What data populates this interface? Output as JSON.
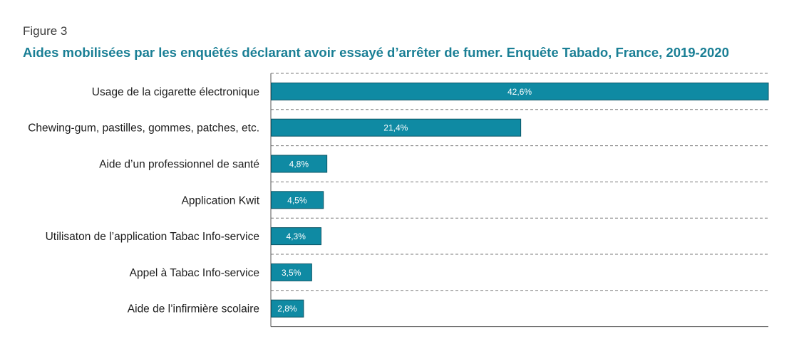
{
  "figure": {
    "label": "Figure 3",
    "title": "Aides mobilisées par les enquêtés déclarant avoir essayé d’arrêter de fumer. Enquête Tabado, France, 2019-2020"
  },
  "colors": {
    "bar": "#0f8aa3",
    "bar_border": "#0d5566",
    "title": "#1a7f95",
    "grid": "#7a7a7a"
  },
  "chart_data": {
    "type": "bar",
    "orientation": "horizontal",
    "title": "Aides mobilisées par les enquêtés déclarant avoir essayé d’arrêter de fumer. Enquête Tabado, France, 2019-2020",
    "xlabel": "",
    "ylabel": "",
    "unit": "%",
    "xlim": [
      0,
      42.6
    ],
    "grid": "horizontal dashed between categories",
    "categories": [
      "Usage de la cigarette électronique",
      "Chewing-gum, pastilles, gommes, patches, etc.",
      "Aide d’un professionnel de santé",
      "Application Kwit",
      "Utilisaton de l’application Tabac Info-service",
      "Appel à Tabac Info-service",
      "Aide de l’infirmière scolaire"
    ],
    "values": [
      42.6,
      21.4,
      4.8,
      4.5,
      4.3,
      3.5,
      2.8
    ],
    "value_labels": [
      "42,6%",
      "21,4%",
      "4,8%",
      "4,5%",
      "4,3%",
      "3,5%",
      "2,8%"
    ]
  }
}
